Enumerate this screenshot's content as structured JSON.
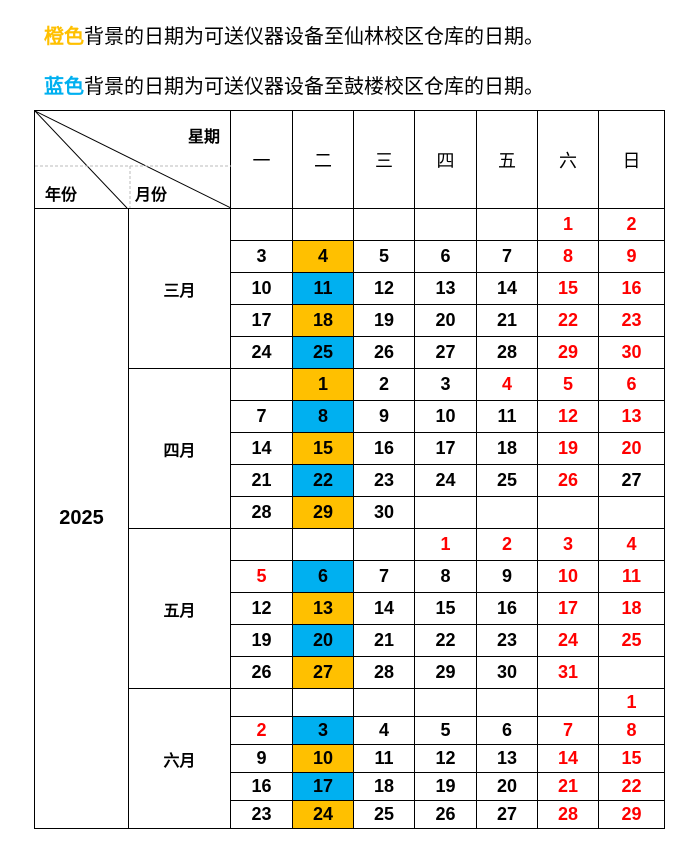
{
  "notes": [
    {
      "highlight": "橙色",
      "highlight_color": "#FFC000",
      "text": "背景的日期为可送仪器设备至仙林校区仓库的日期。"
    },
    {
      "highlight": "蓝色",
      "highlight_color": "#00B0F0",
      "text": "背景的日期为可送仪器设备至鼓楼校区仓库的日期。"
    }
  ],
  "header": {
    "weekday_label": "星期",
    "year_label": "年份",
    "month_label": "月份",
    "weekdays": [
      "一",
      "二",
      "三",
      "四",
      "五",
      "六",
      "日"
    ]
  },
  "colors": {
    "orange": "#FFC000",
    "blue": "#00B0F0",
    "holiday_red": "#FF0000"
  },
  "year": "2025",
  "months": [
    {
      "name": "三月",
      "row_height": 32,
      "rows": [
        [
          null,
          null,
          null,
          null,
          null,
          {
            "d": "1",
            "c": "r"
          },
          {
            "d": "2",
            "c": "r"
          }
        ],
        [
          {
            "d": "3"
          },
          {
            "d": "4",
            "c": "o"
          },
          {
            "d": "5"
          },
          {
            "d": "6"
          },
          {
            "d": "7"
          },
          {
            "d": "8",
            "c": "r"
          },
          {
            "d": "9",
            "c": "r"
          }
        ],
        [
          {
            "d": "10"
          },
          {
            "d": "11",
            "c": "b"
          },
          {
            "d": "12"
          },
          {
            "d": "13"
          },
          {
            "d": "14"
          },
          {
            "d": "15",
            "c": "r"
          },
          {
            "d": "16",
            "c": "r"
          }
        ],
        [
          {
            "d": "17"
          },
          {
            "d": "18",
            "c": "o"
          },
          {
            "d": "19"
          },
          {
            "d": "20"
          },
          {
            "d": "21"
          },
          {
            "d": "22",
            "c": "r"
          },
          {
            "d": "23",
            "c": "r"
          }
        ],
        [
          {
            "d": "24"
          },
          {
            "d": "25",
            "c": "b"
          },
          {
            "d": "26"
          },
          {
            "d": "27"
          },
          {
            "d": "28"
          },
          {
            "d": "29",
            "c": "r"
          },
          {
            "d": "30",
            "c": "r"
          }
        ]
      ]
    },
    {
      "name": "四月",
      "row_height": 32,
      "rows": [
        [
          null,
          {
            "d": "1",
            "c": "o"
          },
          {
            "d": "2"
          },
          {
            "d": "3"
          },
          {
            "d": "4",
            "c": "r"
          },
          {
            "d": "5",
            "c": "r"
          },
          {
            "d": "6",
            "c": "r"
          }
        ],
        [
          {
            "d": "7"
          },
          {
            "d": "8",
            "c": "b"
          },
          {
            "d": "9"
          },
          {
            "d": "10"
          },
          {
            "d": "11"
          },
          {
            "d": "12",
            "c": "r"
          },
          {
            "d": "13",
            "c": "r"
          }
        ],
        [
          {
            "d": "14"
          },
          {
            "d": "15",
            "c": "o"
          },
          {
            "d": "16"
          },
          {
            "d": "17"
          },
          {
            "d": "18"
          },
          {
            "d": "19",
            "c": "r"
          },
          {
            "d": "20",
            "c": "r"
          }
        ],
        [
          {
            "d": "21"
          },
          {
            "d": "22",
            "c": "b"
          },
          {
            "d": "23"
          },
          {
            "d": "24"
          },
          {
            "d": "25"
          },
          {
            "d": "26",
            "c": "r"
          },
          {
            "d": "27"
          }
        ],
        [
          {
            "d": "28"
          },
          {
            "d": "29",
            "c": "o"
          },
          {
            "d": "30"
          },
          null,
          null,
          null,
          null
        ]
      ]
    },
    {
      "name": "五月",
      "row_height": 32,
      "rows": [
        [
          null,
          null,
          null,
          {
            "d": "1",
            "c": "r"
          },
          {
            "d": "2",
            "c": "r"
          },
          {
            "d": "3",
            "c": "r"
          },
          {
            "d": "4",
            "c": "r"
          }
        ],
        [
          {
            "d": "5",
            "c": "r"
          },
          {
            "d": "6",
            "c": "b"
          },
          {
            "d": "7"
          },
          {
            "d": "8"
          },
          {
            "d": "9"
          },
          {
            "d": "10",
            "c": "r"
          },
          {
            "d": "11",
            "c": "r"
          }
        ],
        [
          {
            "d": "12"
          },
          {
            "d": "13",
            "c": "o"
          },
          {
            "d": "14"
          },
          {
            "d": "15"
          },
          {
            "d": "16"
          },
          {
            "d": "17",
            "c": "r"
          },
          {
            "d": "18",
            "c": "r"
          }
        ],
        [
          {
            "d": "19"
          },
          {
            "d": "20",
            "c": "b"
          },
          {
            "d": "21"
          },
          {
            "d": "22"
          },
          {
            "d": "23"
          },
          {
            "d": "24",
            "c": "r"
          },
          {
            "d": "25",
            "c": "r"
          }
        ],
        [
          {
            "d": "26"
          },
          {
            "d": "27",
            "c": "o"
          },
          {
            "d": "28"
          },
          {
            "d": "29"
          },
          {
            "d": "30"
          },
          {
            "d": "31",
            "c": "r"
          },
          null
        ]
      ]
    },
    {
      "name": "六月",
      "row_height": 28,
      "rows": [
        [
          null,
          null,
          null,
          null,
          null,
          null,
          {
            "d": "1",
            "c": "r"
          }
        ],
        [
          {
            "d": "2",
            "c": "r"
          },
          {
            "d": "3",
            "c": "b"
          },
          {
            "d": "4"
          },
          {
            "d": "5"
          },
          {
            "d": "6"
          },
          {
            "d": "7",
            "c": "r"
          },
          {
            "d": "8",
            "c": "r"
          }
        ],
        [
          {
            "d": "9"
          },
          {
            "d": "10",
            "c": "o"
          },
          {
            "d": "11"
          },
          {
            "d": "12"
          },
          {
            "d": "13"
          },
          {
            "d": "14",
            "c": "r"
          },
          {
            "d": "15",
            "c": "r"
          }
        ],
        [
          {
            "d": "16"
          },
          {
            "d": "17",
            "c": "b"
          },
          {
            "d": "18"
          },
          {
            "d": "19"
          },
          {
            "d": "20"
          },
          {
            "d": "21",
            "c": "r"
          },
          {
            "d": "22",
            "c": "r"
          }
        ],
        [
          {
            "d": "23"
          },
          {
            "d": "24",
            "c": "o"
          },
          {
            "d": "25"
          },
          {
            "d": "26"
          },
          {
            "d": "27"
          },
          {
            "d": "28",
            "c": "r"
          },
          {
            "d": "29",
            "c": "r"
          }
        ]
      ]
    }
  ]
}
